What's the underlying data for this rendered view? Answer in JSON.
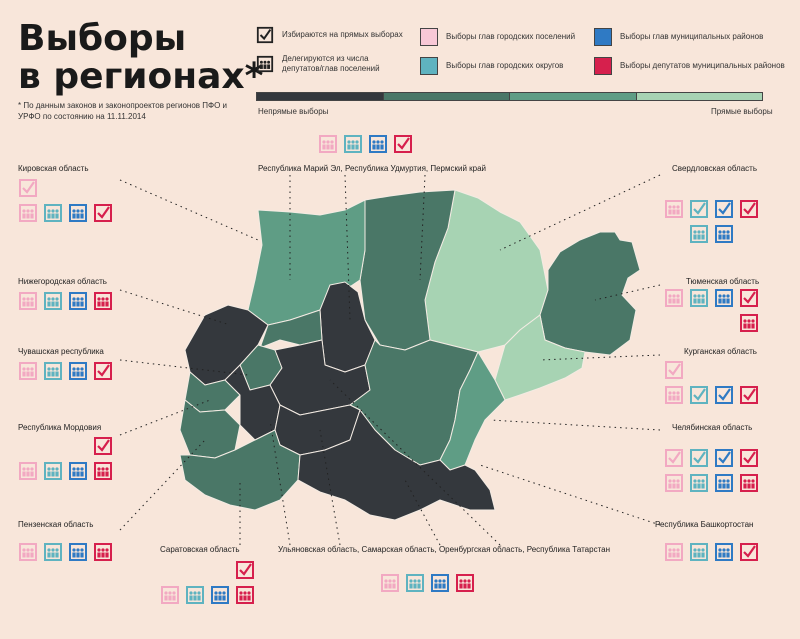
{
  "title": {
    "line1": "Выборы",
    "line2": "в регионах*"
  },
  "footnote": "* По данным законов и законопроектов регионов ПФО и УРФО по состоянию на 11.11.2014",
  "legend": {
    "direct": "Избираются на прямых выборах",
    "delegated": "Делегируются из числа депутатов/глав поселений",
    "city_settlements": "Выборы глав городских поселений",
    "city_districts": "Выборы глав городских округов",
    "municipal_heads": "Выборы глав муниципальных районов",
    "municipal_deputies": "Выборы депутатов муниципальных районов"
  },
  "scale": {
    "left": "Непрямые выборы",
    "right": "Прямые выборы"
  },
  "colors": {
    "pink": "#f2a9c2",
    "teal": "#5fb3c0",
    "blue": "#2f7ac4",
    "red": "#d6204d",
    "dark": "#34383d",
    "mid": "#4a7767",
    "light": "#5f9d85",
    "pale": "#a7d3b3"
  },
  "regions": {
    "kirov": "Кировская область",
    "nizhny": "Нижегородская область",
    "chuvash": "Чувашская республика",
    "mordovia": "Республика Мордовия",
    "penza": "Пензенская область",
    "saratov": "Саратовская область",
    "group_mid": "Ульяновская область,  Самарская область,  Оренбургская область,  Республика Татарстан",
    "group_top": "Республика Марий Эл,  Республика Удмуртия,  Пермский край",
    "sverdlovsk": "Свердловская область",
    "tyumen": "Тюменская область",
    "kurgan": "Курганская область",
    "chelyabinsk": "Челябинская область",
    "bashkortostan": "Республика Башкортостан"
  }
}
